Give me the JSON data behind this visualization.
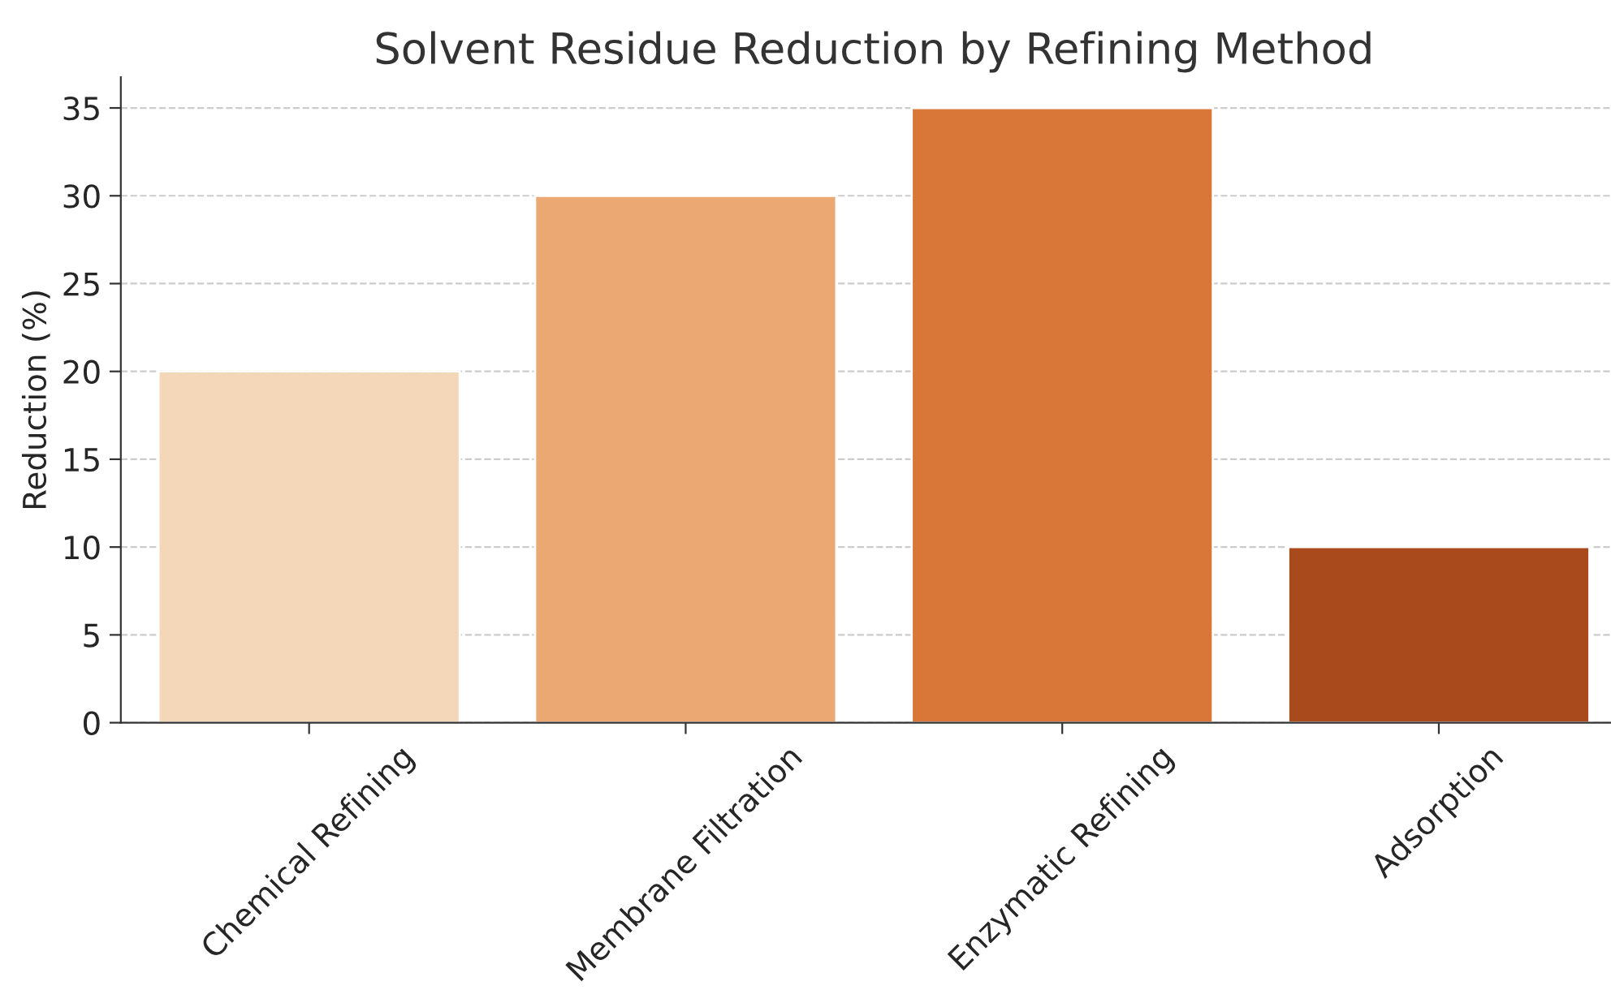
{
  "chart_data": {
    "type": "bar",
    "title": "Solvent Residue Reduction by Refining Method",
    "ylabel": "Reduction (%)",
    "categories": [
      "Chemical Refining",
      "Membrane Filtration",
      "Enzymatic Refining",
      "Adsorption"
    ],
    "values": [
      20,
      30,
      35,
      10
    ],
    "colors": [
      "#f4d7b9",
      "#eba873",
      "#d97738",
      "#a84a1c"
    ],
    "ylim": [
      0,
      36.75
    ],
    "yticks": [
      0,
      5,
      10,
      15,
      20,
      25,
      30,
      35
    ],
    "grid": "y"
  }
}
